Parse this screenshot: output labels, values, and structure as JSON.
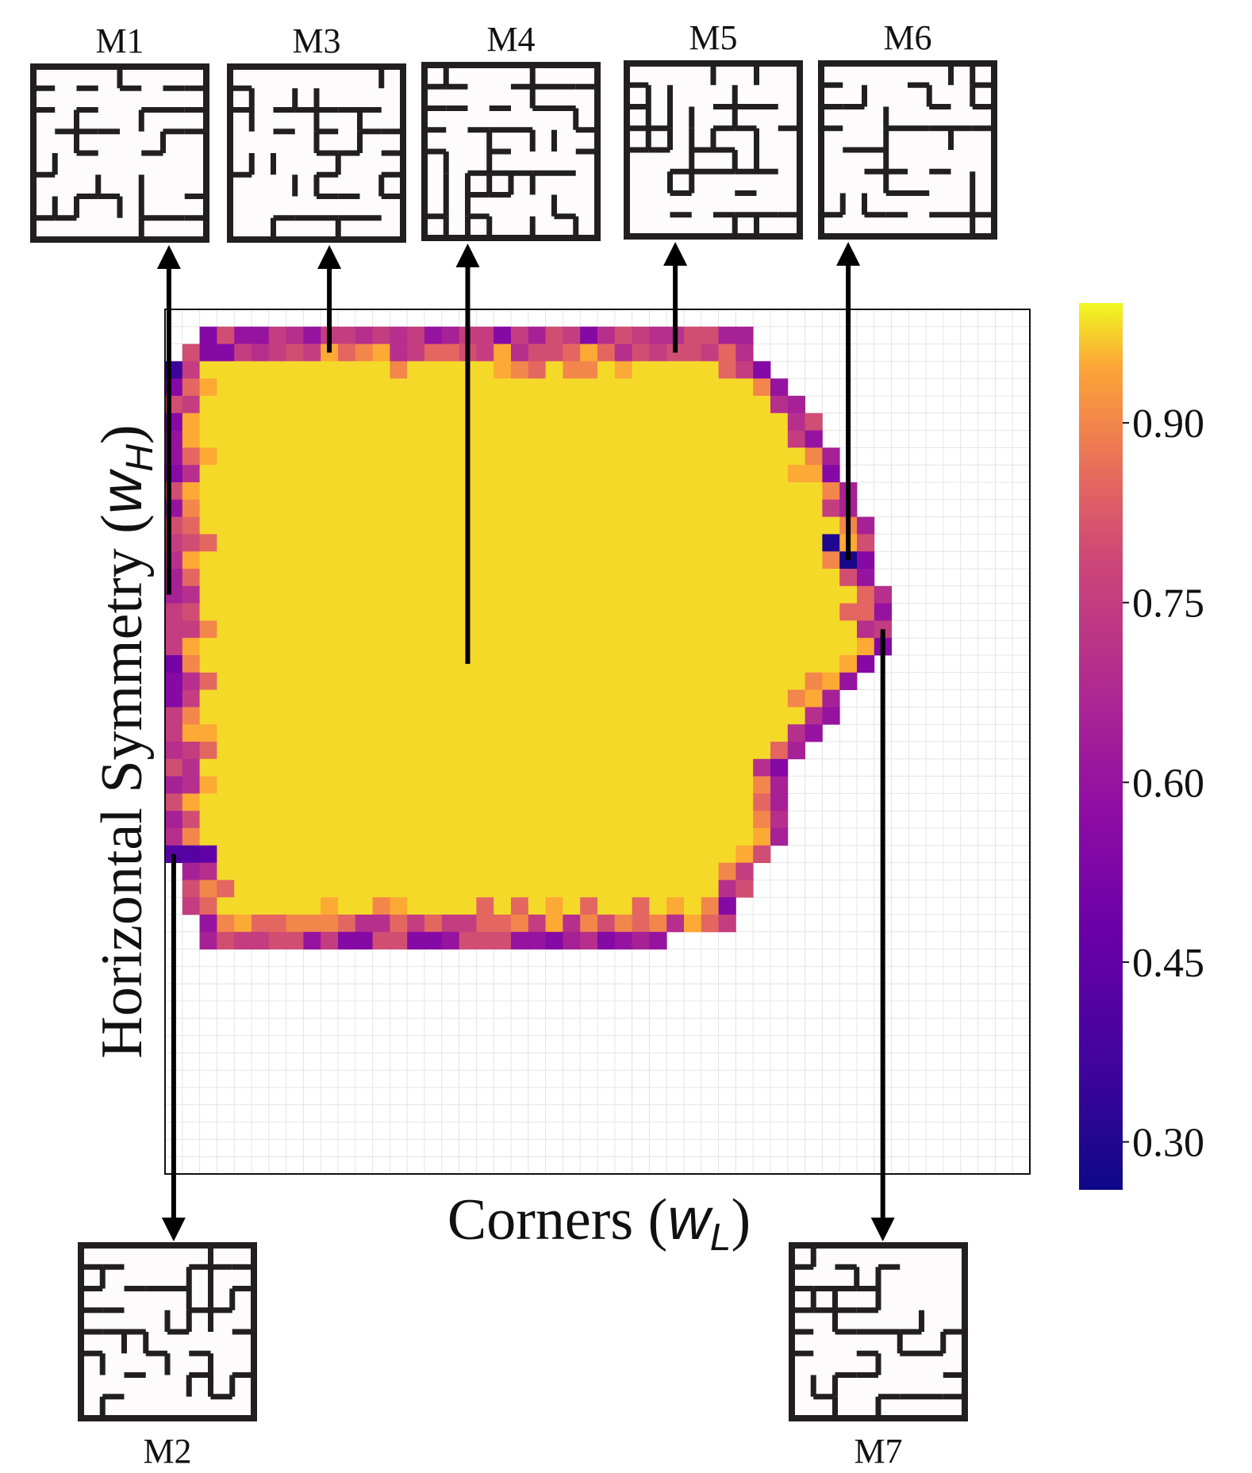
{
  "chart_data": {
    "type": "heatmap",
    "xlabel": "Corners",
    "xlabel_symbol": "w",
    "xlabel_sub": "L",
    "ylabel": "Horizontal Symmetry",
    "ylabel_symbol": "w",
    "ylabel_sub": "H",
    "grid": true,
    "grid_size": [
      50,
      50
    ],
    "colorbar": {
      "cmap": "plasma",
      "range": [
        0.26,
        1.0
      ],
      "ticks": [
        0.3,
        0.45,
        0.6,
        0.75,
        0.9
      ],
      "tick_labels": [
        "0.30",
        "0.45",
        "0.60",
        "0.75",
        "0.90"
      ]
    },
    "region_rows": {
      "note_rows": "row index 0 = top of grid; each entry [row, first_col, last_col]",
      "extents": [
        [
          1,
          2,
          33
        ],
        [
          2,
          1,
          33
        ],
        [
          3,
          0,
          34
        ],
        [
          4,
          0,
          35
        ],
        [
          5,
          0,
          36
        ],
        [
          6,
          0,
          37
        ],
        [
          7,
          0,
          37
        ],
        [
          8,
          0,
          38
        ],
        [
          9,
          0,
          38
        ],
        [
          10,
          0,
          39
        ],
        [
          11,
          0,
          39
        ],
        [
          12,
          0,
          40
        ],
        [
          13,
          0,
          40
        ],
        [
          14,
          0,
          40
        ],
        [
          15,
          0,
          40
        ],
        [
          16,
          0,
          41
        ],
        [
          17,
          0,
          41
        ],
        [
          18,
          0,
          41
        ],
        [
          19,
          0,
          41
        ],
        [
          20,
          0,
          40
        ],
        [
          21,
          0,
          39
        ],
        [
          22,
          0,
          38
        ],
        [
          23,
          0,
          38
        ],
        [
          24,
          0,
          37
        ],
        [
          25,
          0,
          36
        ],
        [
          26,
          0,
          35
        ],
        [
          27,
          0,
          35
        ],
        [
          28,
          0,
          35
        ],
        [
          29,
          0,
          35
        ],
        [
          30,
          0,
          35
        ],
        [
          31,
          0,
          34
        ],
        [
          32,
          1,
          33
        ],
        [
          33,
          1,
          33
        ],
        [
          34,
          1,
          32
        ],
        [
          35,
          2,
          32
        ],
        [
          36,
          2,
          28
        ]
      ]
    },
    "low_cells": [
      [
        3,
        0,
        0.36
      ],
      [
        2,
        2,
        0.55
      ],
      [
        2,
        3,
        0.55
      ],
      [
        31,
        0,
        0.42
      ],
      [
        31,
        1,
        0.42
      ],
      [
        31,
        2,
        0.45
      ],
      [
        20,
        0,
        0.5
      ],
      [
        13,
        38,
        0.3
      ],
      [
        14,
        39,
        0.28
      ]
    ],
    "core_value": 0.98,
    "edge_values": [
      0.55,
      0.6,
      0.65,
      0.7,
      0.75,
      0.8,
      0.85,
      0.9,
      0.95
    ]
  },
  "mazes": [
    {
      "label": "M1"
    },
    {
      "label": "M3"
    },
    {
      "label": "M4"
    },
    {
      "label": "M5"
    },
    {
      "label": "M6"
    },
    {
      "label": "M2"
    },
    {
      "label": "M7"
    }
  ],
  "annotation_cells": {
    "M1": [
      0,
      16
    ],
    "M3": [
      9,
      2
    ],
    "M4": [
      17,
      20
    ],
    "M5": [
      29,
      2
    ],
    "M6": [
      39,
      14
    ],
    "M2": [
      0,
      31
    ],
    "M7": [
      41,
      18
    ]
  }
}
